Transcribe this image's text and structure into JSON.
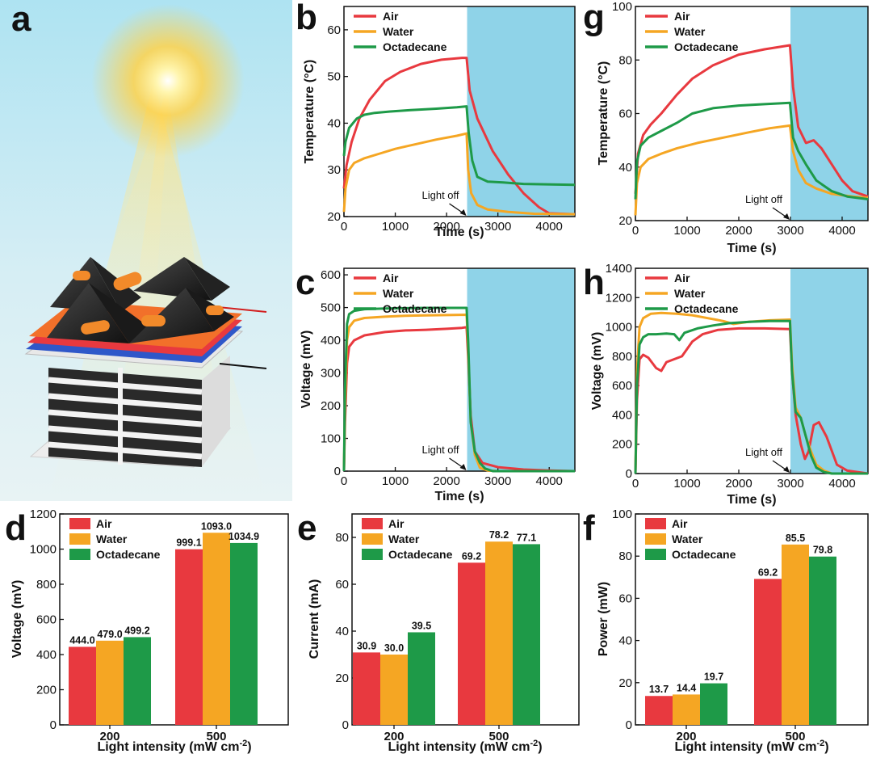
{
  "figure_letters": {
    "a": "a"
  },
  "colors": {
    "air": "#e8393f",
    "water": "#f5a623",
    "octadecane": "#1e9a48",
    "lightoff_bg": "#8fd3e8"
  },
  "chart_data": [
    {
      "id": "b",
      "type": "line",
      "letter": "b",
      "xlabel": "Time (s)",
      "ylabel": "Temperature (°C)",
      "xlim": [
        0,
        4500
      ],
      "ylim": [
        20,
        65
      ],
      "xticks": [
        0,
        1000,
        2000,
        3000,
        4000
      ],
      "yticks": [
        20,
        30,
        40,
        50,
        60
      ],
      "shade_from": 2400,
      "annotation": "Light off",
      "legend": [
        "Air",
        "Water",
        "Octadecane"
      ],
      "series": [
        {
          "name": "Air",
          "color": "#e8393f",
          "x": [
            0,
            50,
            150,
            300,
            500,
            800,
            1100,
            1500,
            1900,
            2300,
            2390,
            2450,
            2600,
            2900,
            3200,
            3500,
            3800,
            4000,
            4500
          ],
          "y": [
            26,
            31,
            36,
            41,
            45,
            49,
            51,
            52.7,
            53.6,
            54,
            54,
            47,
            41,
            34,
            29,
            25,
            22,
            20.7,
            20.5
          ]
        },
        {
          "name": "Water",
          "color": "#f5a623",
          "x": [
            0,
            30,
            100,
            200,
            400,
            700,
            1000,
            1400,
            1800,
            2200,
            2390,
            2420,
            2480,
            2600,
            2800,
            3200,
            3700,
            4500
          ],
          "y": [
            21,
            26,
            30,
            31.5,
            32.5,
            33.5,
            34.5,
            35.5,
            36.5,
            37.3,
            37.8,
            30,
            25,
            22.5,
            21.5,
            21,
            20.6,
            20.5
          ]
        },
        {
          "name": "Octadecane",
          "color": "#1e9a48",
          "x": [
            0,
            30,
            100,
            250,
            400,
            600,
            900,
            1300,
            1800,
            2200,
            2390,
            2430,
            2500,
            2600,
            2800,
            3100,
            3500,
            4500
          ],
          "y": [
            33,
            36,
            39,
            41,
            41.8,
            42.2,
            42.5,
            42.8,
            43.1,
            43.4,
            43.6,
            38,
            32,
            28.5,
            27.5,
            27.3,
            27,
            26.8
          ]
        }
      ]
    },
    {
      "id": "g",
      "type": "line",
      "letter": "g",
      "xlabel": "Time (s)",
      "ylabel": "Temperature (°C)",
      "xlim": [
        0,
        4500
      ],
      "ylim": [
        20,
        100
      ],
      "xticks": [
        0,
        1000,
        2000,
        3000,
        4000
      ],
      "yticks": [
        20,
        40,
        60,
        80,
        100
      ],
      "shade_from": 3000,
      "annotation": "Light off",
      "legend": [
        "Air",
        "Water",
        "Octadecane"
      ],
      "series": [
        {
          "name": "Air",
          "color": "#e8393f",
          "x": [
            0,
            50,
            150,
            300,
            500,
            800,
            1100,
            1500,
            2000,
            2500,
            2990,
            3050,
            3150,
            3300,
            3450,
            3600,
            3800,
            4000,
            4200,
            4500
          ],
          "y": [
            30,
            45,
            52,
            56,
            60,
            67,
            73,
            78,
            82,
            84,
            85.5,
            70,
            55,
            49,
            50,
            47,
            41,
            35,
            31,
            29
          ]
        },
        {
          "name": "Water",
          "color": "#f5a623",
          "x": [
            0,
            30,
            100,
            250,
            500,
            800,
            1200,
            1700,
            2200,
            2600,
            2990,
            3050,
            3150,
            3300,
            3500,
            3800,
            4200,
            4500
          ],
          "y": [
            22,
            34,
            40,
            43,
            45,
            47,
            49,
            51,
            53,
            54.5,
            55.5,
            46,
            39,
            34,
            32,
            30,
            29,
            28.5
          ]
        },
        {
          "name": "Octadecane",
          "color": "#1e9a48",
          "x": [
            0,
            30,
            100,
            250,
            500,
            800,
            1100,
            1500,
            2000,
            2500,
            2990,
            3050,
            3150,
            3300,
            3500,
            3800,
            4100,
            4500
          ],
          "y": [
            28,
            42,
            48,
            51,
            53.5,
            56.5,
            60,
            62,
            63,
            63.5,
            64,
            51,
            46,
            41,
            35,
            31,
            29,
            28
          ]
        }
      ]
    },
    {
      "id": "c",
      "type": "line",
      "letter": "c",
      "xlabel": "Time (s)",
      "ylabel": "Voltage (mV)",
      "xlim": [
        0,
        4500
      ],
      "ylim": [
        0,
        620
      ],
      "xticks": [
        0,
        1000,
        2000,
        3000,
        4000
      ],
      "yticks": [
        0,
        100,
        200,
        300,
        400,
        500,
        600
      ],
      "shade_from": 2400,
      "annotation": "Light off",
      "legend": [
        "Air",
        "Water",
        "Octadecane"
      ],
      "series": [
        {
          "name": "Air",
          "color": "#e8393f",
          "x": [
            0,
            20,
            60,
            100,
            200,
            400,
            800,
            1200,
            1600,
            2000,
            2300,
            2390,
            2420,
            2470,
            2550,
            2700,
            3000,
            3500,
            4000,
            4500
          ],
          "y": [
            0,
            150,
            330,
            380,
            400,
            415,
            425,
            430,
            432,
            435,
            438,
            440,
            350,
            170,
            60,
            25,
            12,
            5,
            2,
            0
          ]
        },
        {
          "name": "Water",
          "color": "#f5a623",
          "x": [
            0,
            20,
            60,
            100,
            200,
            400,
            800,
            1200,
            1600,
            2000,
            2390,
            2420,
            2470,
            2550,
            2650,
            2800,
            3000,
            4500
          ],
          "y": [
            0,
            200,
            400,
            440,
            460,
            468,
            472,
            475,
            476,
            477,
            478,
            380,
            150,
            50,
            10,
            2,
            0,
            0
          ]
        },
        {
          "name": "Octadecane",
          "color": "#1e9a48",
          "x": [
            0,
            20,
            60,
            100,
            200,
            400,
            800,
            1200,
            1600,
            2000,
            2390,
            2420,
            2470,
            2550,
            2650,
            2750,
            2900,
            4500
          ],
          "y": [
            0,
            250,
            450,
            480,
            490,
            495,
            497,
            498,
            499,
            499,
            499,
            400,
            150,
            60,
            25,
            8,
            0,
            0
          ]
        }
      ]
    },
    {
      "id": "h",
      "type": "line",
      "letter": "h",
      "xlabel": "Time (s)",
      "ylabel": "Voltage (mV)",
      "xlim": [
        0,
        4500
      ],
      "ylim": [
        0,
        1400
      ],
      "xticks": [
        0,
        1000,
        2000,
        3000,
        4000
      ],
      "yticks": [
        0,
        200,
        400,
        600,
        800,
        1000,
        1200,
        1400
      ],
      "shade_from": 3000,
      "annotation": "Light off",
      "legend": [
        "Air",
        "Water",
        "Octadecane"
      ],
      "series": [
        {
          "name": "Air",
          "color": "#e8393f",
          "x": [
            0,
            30,
            80,
            150,
            250,
            400,
            500,
            600,
            750,
            900,
            1100,
            1300,
            1600,
            2000,
            2500,
            2990,
            3030,
            3100,
            3200,
            3280,
            3350,
            3450,
            3550,
            3700,
            3900,
            4100,
            4500
          ],
          "y": [
            0,
            500,
            780,
            810,
            790,
            720,
            700,
            760,
            780,
            800,
            900,
            950,
            980,
            990,
            990,
            985,
            700,
            400,
            200,
            100,
            150,
            330,
            350,
            250,
            60,
            20,
            0
          ]
        },
        {
          "name": "Water",
          "color": "#f5a623",
          "x": [
            0,
            30,
            80,
            150,
            300,
            500,
            800,
            1100,
            1400,
            1700,
            1900,
            2200,
            2600,
            2990,
            3030,
            3100,
            3200,
            3300,
            3400,
            3500,
            3650,
            3800,
            4500
          ],
          "y": [
            0,
            700,
            1000,
            1060,
            1090,
            1095,
            1090,
            1080,
            1060,
            1040,
            1020,
            1035,
            1045,
            1050,
            750,
            450,
            380,
            250,
            150,
            60,
            20,
            0,
            0
          ]
        },
        {
          "name": "Octadecane",
          "color": "#1e9a48",
          "x": [
            0,
            30,
            80,
            150,
            250,
            400,
            600,
            750,
            850,
            950,
            1200,
            1500,
            1800,
            2200,
            2600,
            2990,
            3030,
            3100,
            3200,
            3300,
            3400,
            3500,
            3650,
            3800,
            4500
          ],
          "y": [
            0,
            600,
            880,
            930,
            950,
            950,
            955,
            950,
            910,
            960,
            990,
            1010,
            1025,
            1035,
            1040,
            1040,
            700,
            420,
            380,
            250,
            120,
            40,
            10,
            0,
            0
          ]
        }
      ]
    },
    {
      "id": "d",
      "type": "bar",
      "letter": "d",
      "xlabel": "Light intensity (mW cm",
      "xlabel_sup": "-2",
      "xlabel_end": ")",
      "ylabel": "Voltage (mV)",
      "categories": [
        "200",
        "500"
      ],
      "ylim": [
        0,
        1200
      ],
      "yticks": [
        0,
        200,
        400,
        600,
        800,
        1000,
        1200
      ],
      "legend": [
        "Air",
        "Water",
        "Octadecane"
      ],
      "series": [
        {
          "name": "Air",
          "color": "#e8393f",
          "values": [
            444.0,
            999.1
          ],
          "labels": [
            "444.0",
            "999.1"
          ]
        },
        {
          "name": "Water",
          "color": "#f5a623",
          "values": [
            479.0,
            1093.0
          ],
          "labels": [
            "479.0",
            "1093.0"
          ]
        },
        {
          "name": "Octadecane",
          "color": "#1e9a48",
          "values": [
            499.2,
            1034.9
          ],
          "labels": [
            "499.2",
            "1034.9"
          ]
        }
      ]
    },
    {
      "id": "e",
      "type": "bar",
      "letter": "e",
      "xlabel": "Light intensity (mW cm",
      "xlabel_sup": "-2",
      "xlabel_end": ")",
      "ylabel": "Current (mA)",
      "categories": [
        "200",
        "500"
      ],
      "ylim": [
        0,
        90
      ],
      "yticks": [
        0,
        20,
        40,
        60,
        80
      ],
      "legend": [
        "Air",
        "Water",
        "Octadecane"
      ],
      "series": [
        {
          "name": "Air",
          "color": "#e8393f",
          "values": [
            30.9,
            69.2
          ],
          "labels": [
            "30.9",
            "69.2"
          ]
        },
        {
          "name": "Water",
          "color": "#f5a623",
          "values": [
            30.0,
            78.2
          ],
          "labels": [
            "30.0",
            "78.2"
          ]
        },
        {
          "name": "Octadecane",
          "color": "#1e9a48",
          "values": [
            39.5,
            77.1
          ],
          "labels": [
            "39.5",
            "77.1"
          ]
        }
      ]
    },
    {
      "id": "f",
      "type": "bar",
      "letter": "f",
      "xlabel": "Light intensity (mW cm",
      "xlabel_sup": "-2",
      "xlabel_end": ")",
      "ylabel": "Power (mW)",
      "categories": [
        "200",
        "500"
      ],
      "ylim": [
        0,
        100
      ],
      "yticks": [
        0,
        20,
        40,
        60,
        80,
        100
      ],
      "legend": [
        "Air",
        "Water",
        "Octadecane"
      ],
      "series": [
        {
          "name": "Air",
          "color": "#e8393f",
          "values": [
            13.7,
            69.2
          ],
          "labels": [
            "13.7",
            "69.2"
          ]
        },
        {
          "name": "Water",
          "color": "#f5a623",
          "values": [
            14.4,
            85.5
          ],
          "labels": [
            "14.4",
            "85.5"
          ]
        },
        {
          "name": "Octadecane",
          "color": "#1e9a48",
          "values": [
            19.7,
            79.8
          ],
          "labels": [
            "19.7",
            "79.8"
          ]
        }
      ]
    }
  ]
}
